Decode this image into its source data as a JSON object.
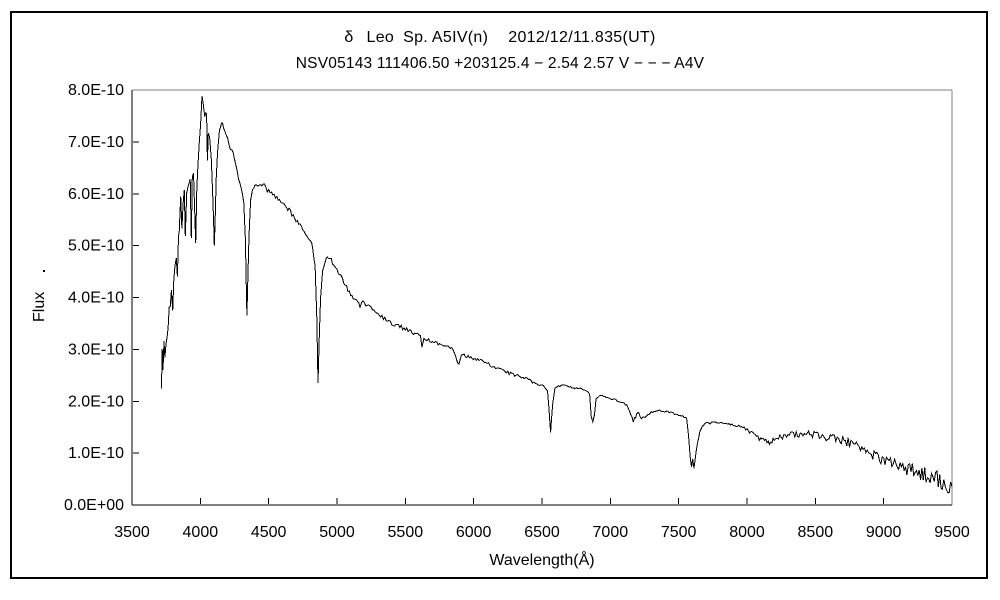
{
  "title": {
    "parts": [
      "δ",
      "Leo",
      "Sp. A5IV(n)",
      "2012/12/11.835(UT)"
    ],
    "line2": "NSV05143 111406.50 +203125.4 − 2.54 2.57 V − − − A4V"
  },
  "colors": {
    "background": "#ffffff",
    "border": "#000000",
    "axis": "#000000",
    "frame_top_right": "#808080",
    "line": "#000000",
    "text": "#000000"
  },
  "chart_data": {
    "type": "line",
    "title": "δ Leo  Sp. A5IV(n)  2012/12/11.835(UT)",
    "subtitle": "NSV05143 111406.50 +203125.4 − 2.54 2.57 V − − − A4V",
    "xlabel": "Wavelength(Å)",
    "ylabel": "Flux",
    "ylabel_stray_dot": ".",
    "grid": false,
    "legend": "none",
    "xlim": [
      3500,
      9500
    ],
    "ylim": [
      0,
      8e-10
    ],
    "y_value_scale": 1e-10,
    "x_ticks": [
      3500,
      4000,
      4500,
      5000,
      5500,
      6000,
      6500,
      7000,
      7500,
      8000,
      8500,
      9000,
      9500
    ],
    "x_tick_labels": [
      "3500",
      "4000",
      "4500",
      "5000",
      "5500",
      "6000",
      "6500",
      "7000",
      "7500",
      "8000",
      "8500",
      "9000",
      "9500"
    ],
    "y_ticks": [
      0,
      1,
      2,
      3,
      4,
      5,
      6,
      7,
      8
    ],
    "y_tick_labels": [
      "0.0E+00",
      "1.0E-10",
      "2.0E-10",
      "3.0E-10",
      "4.0E-10",
      "5.0E-10",
      "6.0E-10",
      "7.0E-10",
      "8.0E-10"
    ],
    "points_format": [
      "wavelength_angstrom",
      "flux_x1e-10",
      "noise_halfamp_x1e-10"
    ],
    "series": [
      {
        "name": "spectrum",
        "color": "#000000",
        "points": [
          [
            3716,
            2.25,
            0
          ],
          [
            3721,
            2.95,
            0.25
          ],
          [
            3727,
            2.6,
            0.3
          ],
          [
            3734,
            3.15,
            0.3
          ],
          [
            3741,
            2.85,
            0.3
          ],
          [
            3749,
            3.3,
            0.28
          ],
          [
            3757,
            3.5,
            0.28
          ],
          [
            3764,
            3.2,
            0.28
          ],
          [
            3772,
            3.85,
            0.25
          ],
          [
            3780,
            3.7,
            0.25
          ],
          [
            3788,
            3.95,
            0.22
          ],
          [
            3798,
            3.65,
            0.2
          ],
          [
            3806,
            4.3,
            0.22
          ],
          [
            3815,
            4.7,
            0.22
          ],
          [
            3824,
            4.95,
            0.2
          ],
          [
            3832,
            4.4,
            0.15
          ],
          [
            3840,
            5.2,
            0.18
          ],
          [
            3845,
            5.35,
            0.2
          ],
          [
            3856,
            5.75,
            0.2
          ],
          [
            3865,
            5.3,
            0.18
          ],
          [
            3874,
            5.95,
            0.18
          ],
          [
            3883,
            6.05,
            0.2
          ],
          [
            3890,
            5.15,
            0.12
          ],
          [
            3900,
            6.0,
            0.18
          ],
          [
            3910,
            6.25,
            0.15
          ],
          [
            3918,
            6.1,
            0.15
          ],
          [
            3926,
            6.3,
            0.2
          ],
          [
            3934,
            5.2,
            0.1
          ],
          [
            3941,
            6.35,
            0.15
          ],
          [
            3950,
            6.4,
            0.15
          ],
          [
            3958,
            5.8,
            0.15
          ],
          [
            3966,
            5.05,
            0.08
          ],
          [
            3974,
            6.1,
            0.12
          ],
          [
            3983,
            6.55,
            0.1
          ],
          [
            3992,
            6.9,
            0.07
          ],
          [
            4002,
            7.3,
            0.06
          ],
          [
            4012,
            7.85,
            0.04
          ],
          [
            4022,
            7.7,
            0.05
          ],
          [
            4032,
            7.45,
            0.05
          ],
          [
            4040,
            7.55,
            0.04
          ],
          [
            4046,
            7.5,
            0.04
          ],
          [
            4052,
            6.6,
            0.06
          ],
          [
            4058,
            7.2,
            0.05
          ],
          [
            4068,
            7.1,
            0.05
          ],
          [
            4080,
            6.7,
            0.04
          ],
          [
            4092,
            5.9,
            0.03
          ],
          [
            4098,
            5.4,
            0.02
          ],
          [
            4102,
            5.0,
            0
          ],
          [
            4107,
            5.4,
            0.02
          ],
          [
            4116,
            6.3,
            0.03
          ],
          [
            4126,
            6.85,
            0.04
          ],
          [
            4140,
            7.2,
            0.04
          ],
          [
            4155,
            7.35,
            0.04
          ],
          [
            4170,
            7.3,
            0.05
          ],
          [
            4185,
            7.2,
            0.05
          ],
          [
            4200,
            7.05,
            0.05
          ],
          [
            4220,
            6.9,
            0.05
          ],
          [
            4240,
            6.75,
            0.05
          ],
          [
            4260,
            6.55,
            0.05
          ],
          [
            4280,
            6.3,
            0.04
          ],
          [
            4300,
            6.1,
            0.04
          ],
          [
            4318,
            5.8,
            0.03
          ],
          [
            4330,
            5.1,
            0.02
          ],
          [
            4336,
            4.2,
            0.01
          ],
          [
            4341,
            3.65,
            0
          ],
          [
            4348,
            4.4,
            0.01
          ],
          [
            4356,
            5.2,
            0.02
          ],
          [
            4368,
            5.85,
            0.03
          ],
          [
            4382,
            6.05,
            0.04
          ],
          [
            4400,
            6.15,
            0.04
          ],
          [
            4430,
            6.2,
            0.05
          ],
          [
            4460,
            6.18,
            0.05
          ],
          [
            4500,
            6.05,
            0.05
          ],
          [
            4540,
            5.95,
            0.05
          ],
          [
            4580,
            5.85,
            0.05
          ],
          [
            4620,
            5.78,
            0.05
          ],
          [
            4660,
            5.65,
            0.05
          ],
          [
            4700,
            5.5,
            0.04
          ],
          [
            4740,
            5.35,
            0.04
          ],
          [
            4780,
            5.2,
            0.03
          ],
          [
            4815,
            5.05,
            0.03
          ],
          [
            4840,
            4.6,
            0.02
          ],
          [
            4852,
            3.6,
            0.01
          ],
          [
            4861,
            2.35,
            0
          ],
          [
            4870,
            3.2,
            0.01
          ],
          [
            4880,
            4.0,
            0.02
          ],
          [
            4895,
            4.5,
            0.03
          ],
          [
            4912,
            4.7,
            0.03
          ],
          [
            4930,
            4.8,
            0.04
          ],
          [
            4950,
            4.75,
            0.04
          ],
          [
            4975,
            4.65,
            0.04
          ],
          [
            5000,
            4.55,
            0.05
          ],
          [
            5030,
            4.4,
            0.05
          ],
          [
            5060,
            4.25,
            0.05
          ],
          [
            5090,
            4.1,
            0.05
          ],
          [
            5120,
            4.0,
            0.05
          ],
          [
            5150,
            3.95,
            0.05
          ],
          [
            5168,
            3.8,
            0.04
          ],
          [
            5190,
            3.95,
            0.05
          ],
          [
            5220,
            3.85,
            0.05
          ],
          [
            5250,
            3.8,
            0.05
          ],
          [
            5280,
            3.75,
            0.05
          ],
          [
            5310,
            3.68,
            0.05
          ],
          [
            5340,
            3.6,
            0.04
          ],
          [
            5370,
            3.56,
            0.04
          ],
          [
            5400,
            3.5,
            0.04
          ],
          [
            5430,
            3.45,
            0.04
          ],
          [
            5460,
            3.45,
            0.04
          ],
          [
            5490,
            3.4,
            0.04
          ],
          [
            5520,
            3.37,
            0.04
          ],
          [
            5550,
            3.33,
            0.04
          ],
          [
            5580,
            3.3,
            0.04
          ],
          [
            5610,
            3.25,
            0.03
          ],
          [
            5622,
            3.05,
            0.02
          ],
          [
            5636,
            3.22,
            0.03
          ],
          [
            5670,
            3.18,
            0.03
          ],
          [
            5700,
            3.15,
            0.03
          ],
          [
            5730,
            3.12,
            0.03
          ],
          [
            5760,
            3.1,
            0.03
          ],
          [
            5790,
            3.06,
            0.03
          ],
          [
            5820,
            3.03,
            0.03
          ],
          [
            5850,
            3.0,
            0.03
          ],
          [
            5878,
            2.78,
            0.02
          ],
          [
            5893,
            2.7,
            0.02
          ],
          [
            5910,
            2.9,
            0.03
          ],
          [
            5940,
            2.88,
            0.03
          ],
          [
            5970,
            2.85,
            0.03
          ],
          [
            6000,
            2.83,
            0.03
          ],
          [
            6040,
            2.8,
            0.03
          ],
          [
            6080,
            2.76,
            0.03
          ],
          [
            6120,
            2.7,
            0.03
          ],
          [
            6160,
            2.65,
            0.03
          ],
          [
            6200,
            2.6,
            0.03
          ],
          [
            6240,
            2.56,
            0.03
          ],
          [
            6280,
            2.52,
            0.03
          ],
          [
            6320,
            2.5,
            0.03
          ],
          [
            6360,
            2.45,
            0.03
          ],
          [
            6400,
            2.42,
            0.03
          ],
          [
            6440,
            2.36,
            0.02
          ],
          [
            6480,
            2.32,
            0.02
          ],
          [
            6520,
            2.28,
            0.02
          ],
          [
            6540,
            2.2,
            0.01
          ],
          [
            6550,
            1.9,
            0
          ],
          [
            6563,
            1.4,
            0
          ],
          [
            6578,
            1.95,
            0
          ],
          [
            6595,
            2.25,
            0.01
          ],
          [
            6620,
            2.3,
            0.02
          ],
          [
            6660,
            2.3,
            0.02
          ],
          [
            6700,
            2.28,
            0.02
          ],
          [
            6740,
            2.26,
            0.02
          ],
          [
            6780,
            2.24,
            0.02
          ],
          [
            6820,
            2.22,
            0.02
          ],
          [
            6848,
            2.15,
            0.01
          ],
          [
            6860,
            1.7,
            0.01
          ],
          [
            6872,
            1.6,
            0.01
          ],
          [
            6884,
            1.75,
            0.01
          ],
          [
            6896,
            2.05,
            0.02
          ],
          [
            6920,
            2.12,
            0.02
          ],
          [
            6960,
            2.1,
            0.02
          ],
          [
            7000,
            2.05,
            0.02
          ],
          [
            7040,
            2.02,
            0.02
          ],
          [
            7080,
            1.98,
            0.02
          ],
          [
            7120,
            1.93,
            0.02
          ],
          [
            7150,
            1.75,
            0.02
          ],
          [
            7168,
            1.62,
            0.03
          ],
          [
            7185,
            1.7,
            0.03
          ],
          [
            7200,
            1.8,
            0.03
          ],
          [
            7218,
            1.7,
            0.03
          ],
          [
            7235,
            1.67,
            0.03
          ],
          [
            7255,
            1.7,
            0.02
          ],
          [
            7275,
            1.74,
            0.02
          ],
          [
            7300,
            1.79,
            0.02
          ],
          [
            7340,
            1.82,
            0.02
          ],
          [
            7390,
            1.81,
            0.02
          ],
          [
            7440,
            1.78,
            0.02
          ],
          [
            7490,
            1.74,
            0.02
          ],
          [
            7530,
            1.72,
            0.02
          ],
          [
            7558,
            1.68,
            0.01
          ],
          [
            7572,
            1.35,
            0.01
          ],
          [
            7584,
            0.95,
            0.01
          ],
          [
            7594,
            0.72,
            0.01
          ],
          [
            7603,
            0.88,
            0.02
          ],
          [
            7612,
            0.7,
            0.01
          ],
          [
            7622,
            0.9,
            0.02
          ],
          [
            7638,
            1.2,
            0.02
          ],
          [
            7655,
            1.42,
            0.02
          ],
          [
            7672,
            1.52,
            0.01
          ],
          [
            7700,
            1.57,
            0.02
          ],
          [
            7750,
            1.59,
            0.02
          ],
          [
            7800,
            1.58,
            0.02
          ],
          [
            7850,
            1.57,
            0.02
          ],
          [
            7900,
            1.55,
            0.02
          ],
          [
            7950,
            1.52,
            0.03
          ],
          [
            8000,
            1.46,
            0.03
          ],
          [
            8040,
            1.38,
            0.04
          ],
          [
            8080,
            1.3,
            0.05
          ],
          [
            8120,
            1.24,
            0.05
          ],
          [
            8155,
            1.2,
            0.05
          ],
          [
            8200,
            1.24,
            0.06
          ],
          [
            8240,
            1.3,
            0.06
          ],
          [
            8280,
            1.33,
            0.06
          ],
          [
            8330,
            1.36,
            0.06
          ],
          [
            8380,
            1.36,
            0.06
          ],
          [
            8430,
            1.37,
            0.07
          ],
          [
            8480,
            1.36,
            0.07
          ],
          [
            8530,
            1.34,
            0.07
          ],
          [
            8580,
            1.31,
            0.08
          ],
          [
            8630,
            1.29,
            0.08
          ],
          [
            8680,
            1.26,
            0.08
          ],
          [
            8730,
            1.22,
            0.09
          ],
          [
            8780,
            1.15,
            0.1
          ],
          [
            8830,
            1.07,
            0.1
          ],
          [
            8880,
            1.0,
            0.1
          ],
          [
            8930,
            0.93,
            0.11
          ],
          [
            8980,
            0.88,
            0.11
          ],
          [
            9030,
            0.83,
            0.12
          ],
          [
            9080,
            0.78,
            0.12
          ],
          [
            9130,
            0.73,
            0.13
          ],
          [
            9180,
            0.7,
            0.13
          ],
          [
            9230,
            0.65,
            0.14
          ],
          [
            9280,
            0.6,
            0.15
          ],
          [
            9330,
            0.55,
            0.16
          ],
          [
            9380,
            0.5,
            0.17
          ],
          [
            9430,
            0.45,
            0.18
          ],
          [
            9470,
            0.4,
            0.18
          ],
          [
            9500,
            0.35,
            0.15
          ]
        ]
      }
    ]
  }
}
